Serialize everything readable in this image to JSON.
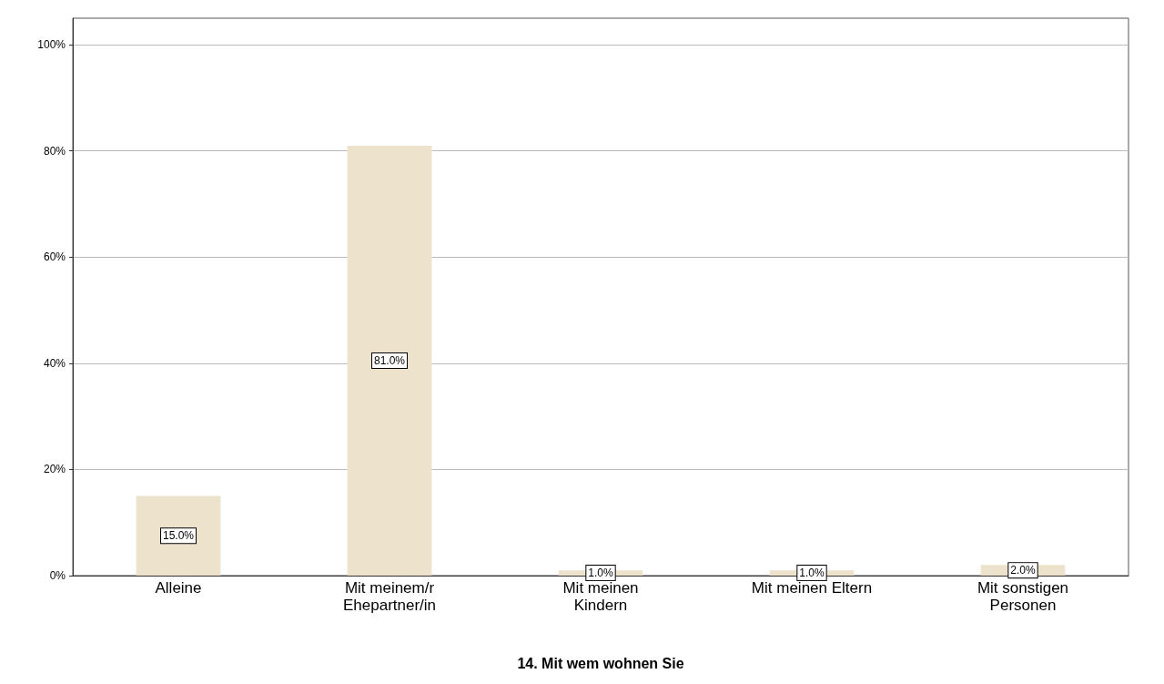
{
  "chart_data": {
    "type": "bar",
    "xlabel": "14. Mit wem wohnen Sie",
    "categories": [
      "Alleine",
      "Mit meinem/r\nEhepartner/in",
      "Mit meinen\nKindern",
      "Mit meinen Eltern",
      "Mit sonstigen\nPersonen"
    ],
    "values": [
      15,
      81,
      1,
      1,
      2
    ],
    "value_labels": [
      "15.0%",
      "81.0%",
      "1.0%",
      "1.0%",
      "2.0%"
    ],
    "color": "#ede3cc",
    "ylim": [
      0,
      105
    ],
    "yticks": [
      {
        "value": 0,
        "label": "0%"
      },
      {
        "value": 20,
        "label": "20%"
      },
      {
        "value": 40,
        "label": "40%"
      },
      {
        "value": 60,
        "label": "60%"
      },
      {
        "value": 80,
        "label": "80%"
      },
      {
        "value": 100,
        "label": "100%"
      }
    ],
    "grid": "y"
  }
}
